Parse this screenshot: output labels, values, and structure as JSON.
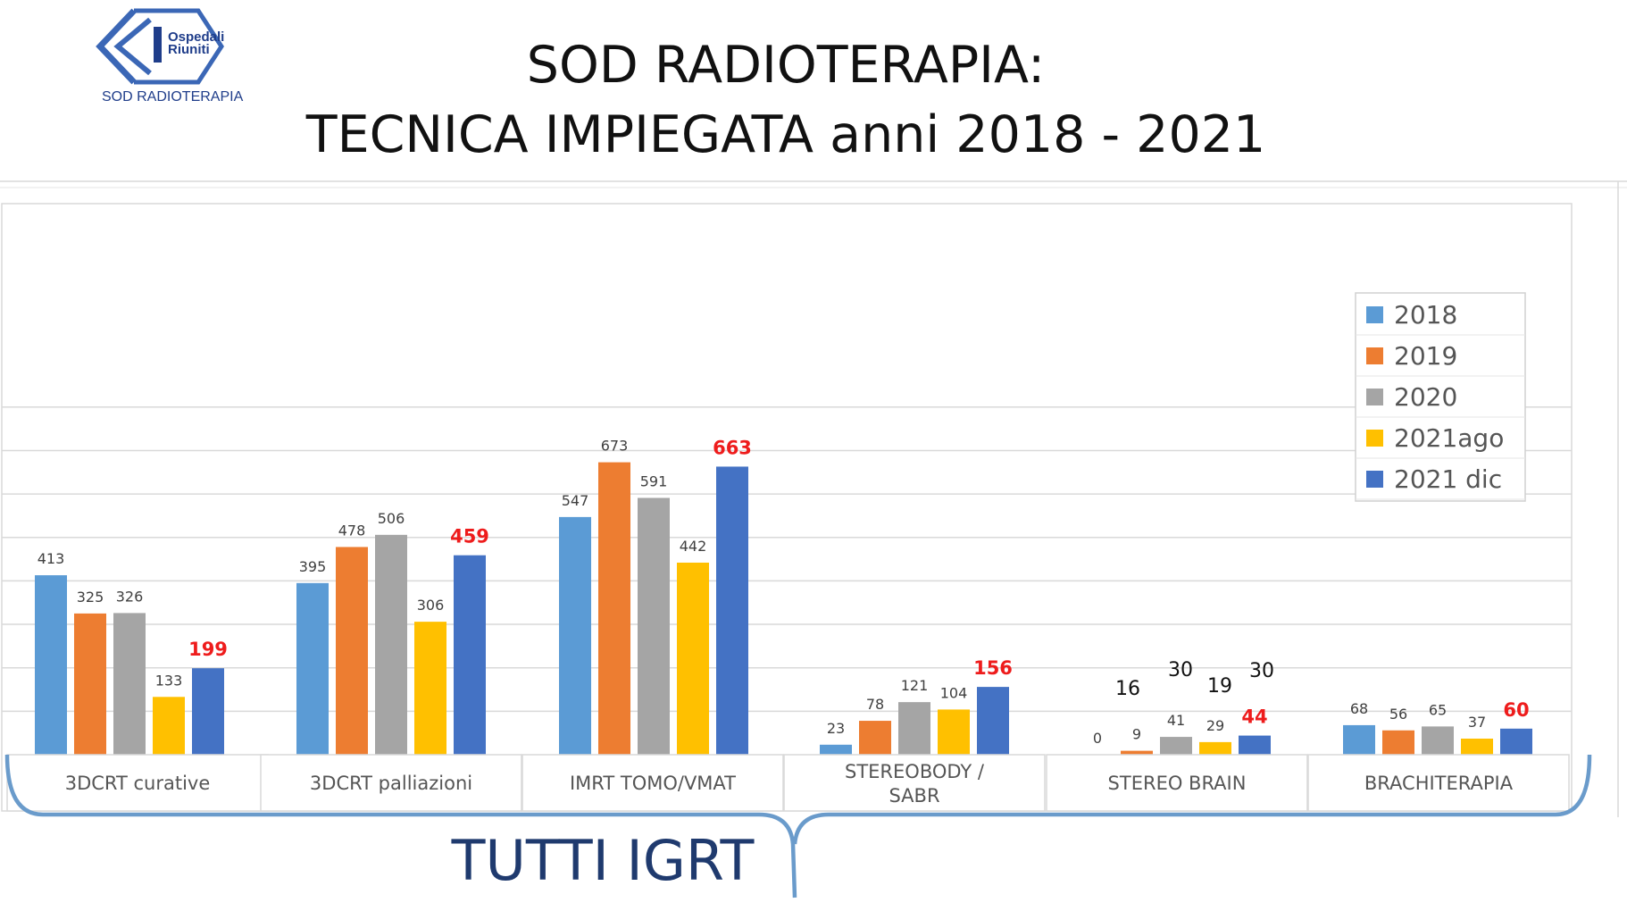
{
  "logo": {
    "name_line1": "Ospedali",
    "name_line2": "Riuniti",
    "caption": "SOD RADIOTERAPIA",
    "brand_color": "#1f3d8a"
  },
  "title": {
    "line1": "SOD RADIOTERAPIA:",
    "line2": "TECNICA IMPIEGATA anni 2018 - 2021"
  },
  "footer": {
    "label": "TUTTI IGRT",
    "bracket_color": "#6a9bcb"
  },
  "chart_data": {
    "type": "bar",
    "categories": [
      "3DCRT curative",
      "3DCRT palliazioni",
      "IMRT TOMO/VMAT",
      "STEREOBODY / SABR",
      "STEREO BRAIN",
      "BRACHITERAPIA"
    ],
    "series": [
      {
        "name": "2018",
        "color": "#5b9bd5",
        "values": [
          413,
          395,
          547,
          23,
          0,
          68
        ]
      },
      {
        "name": "2019",
        "color": "#ed7d31",
        "values": [
          325,
          478,
          673,
          78,
          9,
          56
        ]
      },
      {
        "name": "2020",
        "color": "#a5a5a5",
        "values": [
          326,
          506,
          591,
          121,
          41,
          65
        ]
      },
      {
        "name": "2021ago",
        "color": "#ffc000",
        "values": [
          133,
          306,
          442,
          104,
          29,
          37
        ]
      },
      {
        "name": "2021 dic",
        "color": "#4472c4",
        "values": [
          199,
          459,
          663,
          156,
          44,
          60
        ]
      }
    ],
    "highlight_series": "2021 dic",
    "highlight_color": "#ee1c1c",
    "extra_labels": [
      {
        "category": "STEREO BRAIN",
        "series": "2019",
        "value": "16"
      },
      {
        "category": "STEREO BRAIN",
        "series": "2020",
        "value": "30"
      },
      {
        "category": "STEREO BRAIN",
        "series": "2021ago",
        "value": "19"
      },
      {
        "category": "STEREO BRAIN",
        "series": "2021 dic",
        "value": "30"
      }
    ],
    "ylim": [
      0,
      800
    ],
    "grid": true,
    "legend_position": "right"
  }
}
